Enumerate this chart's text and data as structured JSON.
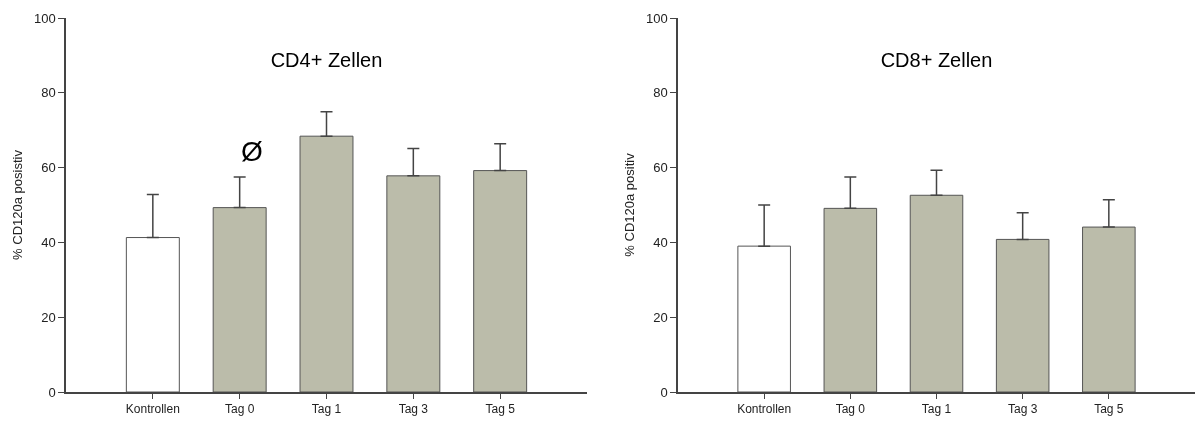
{
  "chart_data": [
    {
      "type": "bar",
      "title": "CD4+ Zellen",
      "ylabel": "% CD120a posistiv",
      "categories": [
        "Kontrollen",
        "Tag 0",
        "Tag 1",
        "Tag 3",
        "Tag 5"
      ],
      "values": [
        41.3,
        49.3,
        68.4,
        57.8,
        59.2
      ],
      "colors": [
        "#ffffff",
        "#bbbcaa",
        "#bbbcaa",
        "#bbbcaa",
        "#bbbcaa"
      ],
      "errors": [
        [
          41.3,
          52.8
        ],
        [
          49.3,
          57.5
        ],
        [
          68.4,
          74.9
        ],
        [
          57.8,
          65.1
        ],
        [
          59.2,
          66.4
        ]
      ],
      "ylim": [
        0,
        100
      ],
      "yticks": [
        0,
        20,
        40,
        60,
        80,
        100
      ],
      "grid": false,
      "legend": false,
      "annotations": [
        "Ø"
      ]
    },
    {
      "type": "bar",
      "title": "CD8+ Zellen",
      "ylabel": "% CD120a positiv",
      "categories": [
        "Kontrollen",
        "Tag 0",
        "Tag 1",
        "Tag 3",
        "Tag 5"
      ],
      "values": [
        39.0,
        49.1,
        52.6,
        40.8,
        44.1
      ],
      "colors": [
        "#ffffff",
        "#bbbcaa",
        "#bbbcaa",
        "#bbbcaa",
        "#bbbcaa"
      ],
      "errors": [
        [
          39.0,
          50.0
        ],
        [
          49.1,
          57.5
        ],
        [
          52.6,
          59.3
        ],
        [
          40.8,
          47.9
        ],
        [
          44.1,
          51.4
        ]
      ],
      "ylim": [
        0,
        100
      ],
      "yticks": [
        0,
        20,
        40,
        60,
        80,
        100
      ],
      "grid": false,
      "legend": false
    }
  ]
}
